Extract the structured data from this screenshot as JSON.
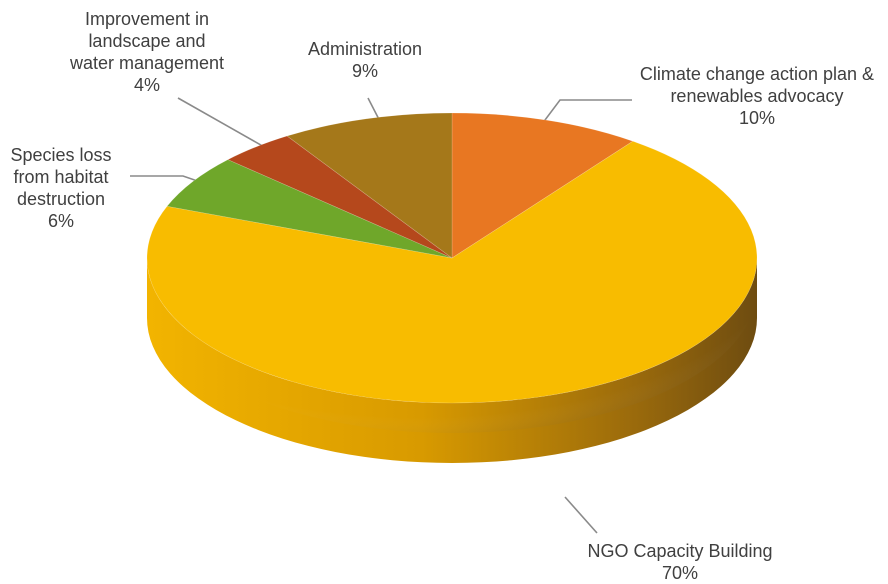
{
  "chart_data": {
    "type": "pie",
    "style": "3d",
    "title": "",
    "slices": [
      {
        "label": "Climate change action plan & renewables advocacy",
        "label_lines": [
          "Climate change action plan &",
          "renewables advocacy"
        ],
        "value": 10,
        "value_label": "10%",
        "color": "#E87722"
      },
      {
        "label": "NGO Capacity Building",
        "label_lines": [
          "NGO Capacity Building"
        ],
        "value": 70,
        "value_label": "70%",
        "color": "#F8BC00"
      },
      {
        "label": "Species loss from habitat destruction",
        "label_lines": [
          "Species loss",
          "from habitat",
          "destruction"
        ],
        "value": 6,
        "value_label": "6%",
        "color": "#6FA72A"
      },
      {
        "label": "Improvement in landscape and water management",
        "label_lines": [
          "Improvement in",
          "landscape and",
          "water management"
        ],
        "value": 4,
        "value_label": "4%",
        "color": "#B5481C"
      },
      {
        "label": "Administration",
        "label_lines": [
          "Administration"
        ],
        "value": 9,
        "value_label": "9%",
        "color": "#A5781A"
      }
    ]
  }
}
